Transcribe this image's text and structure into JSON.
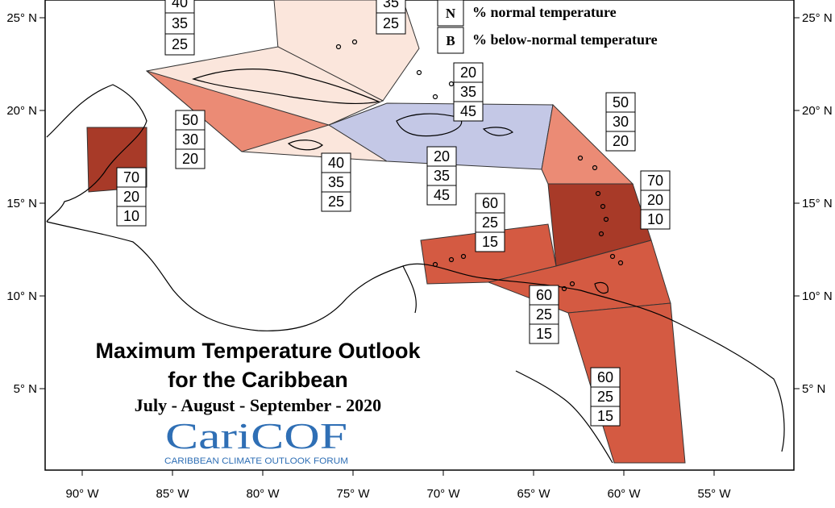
{
  "title_line1": "Maximum Temperature Outlook",
  "title_line2": "for the Caribbean",
  "subtitle": "July - August - September - 2020",
  "logo_text": "CariCOF",
  "logo_subtext": "CARIBBEAN CLIMATE OUTLOOK FORUM",
  "legend": [
    {
      "key": "N",
      "text": "% normal temperature"
    },
    {
      "key": "B",
      "text": "% below-normal temperature"
    }
  ],
  "lon_labels": [
    "90° W",
    "85° W",
    "80° W",
    "75° W",
    "70° W",
    "65° W",
    "60° W",
    "55° W"
  ],
  "lat_labels": [
    "25° N",
    "20° N",
    "15° N",
    "10° N",
    "5° N"
  ],
  "colors": {
    "above_70": "#a83a28",
    "above_60": "#d45a42",
    "above_50": "#eb8b75",
    "above_40": "#fbe6dc",
    "below_45": "#c4c8e6",
    "border": "#333333",
    "coast": "#000000"
  },
  "probability_boxes": [
    {
      "values": [
        "40",
        "35",
        "25"
      ]
    },
    {
      "values": [
        "35",
        "25"
      ]
    },
    {
      "values": [
        "20",
        "35",
        "45"
      ]
    },
    {
      "values": [
        "50",
        "30",
        "20"
      ]
    },
    {
      "values": [
        "50",
        "30",
        "20"
      ]
    },
    {
      "values": [
        "40",
        "35",
        "25"
      ]
    },
    {
      "values": [
        "20",
        "35",
        "45"
      ]
    },
    {
      "values": [
        "70",
        "20",
        "10"
      ]
    },
    {
      "values": [
        "70",
        "20",
        "10"
      ]
    },
    {
      "values": [
        "60",
        "25",
        "15"
      ]
    },
    {
      "values": [
        "60",
        "25",
        "15"
      ]
    },
    {
      "values": [
        "60",
        "25",
        "15"
      ]
    }
  ]
}
